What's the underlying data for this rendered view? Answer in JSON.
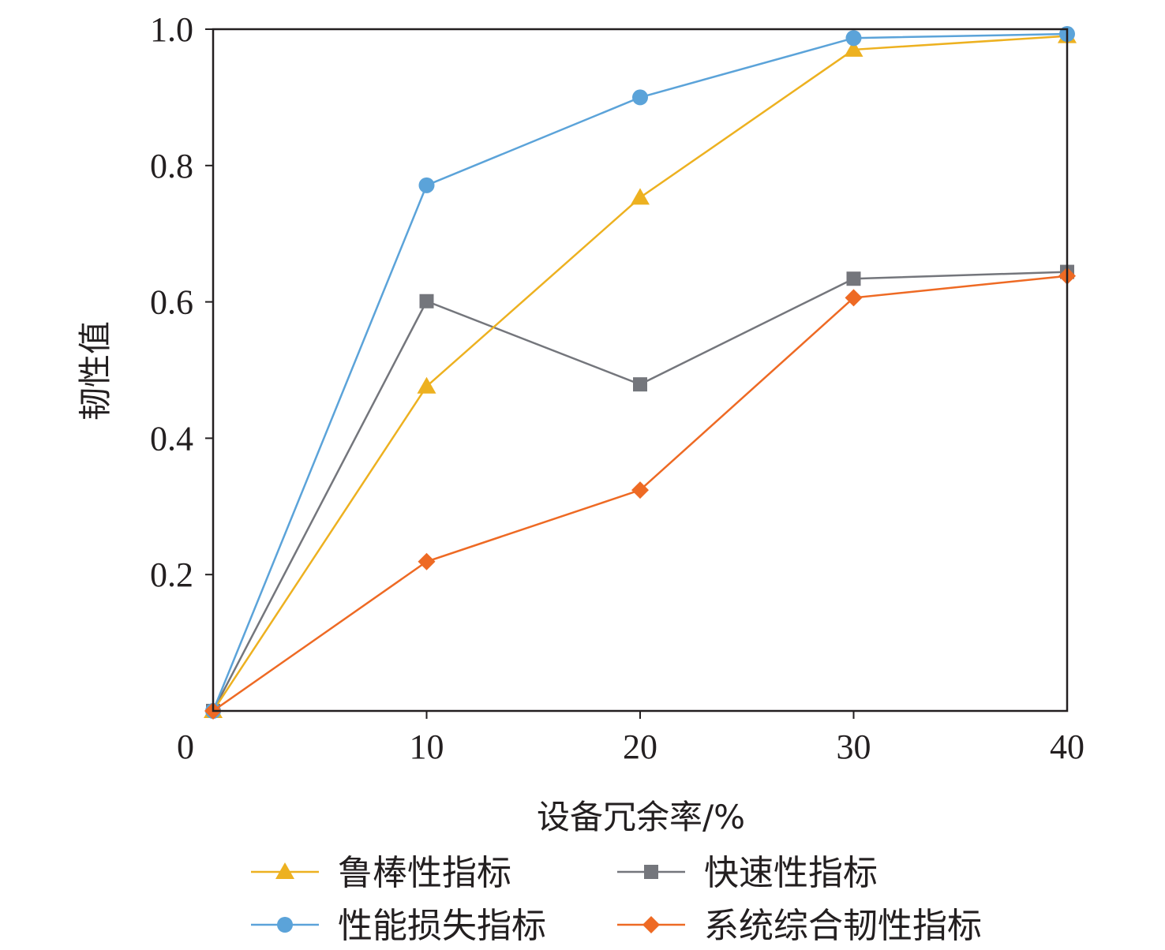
{
  "chart_data": {
    "type": "line",
    "title": "",
    "xlabel": "设备冗余率/%",
    "ylabel": "韧性值",
    "x": [
      0,
      10,
      20,
      30,
      40
    ],
    "xlim": [
      0,
      40
    ],
    "ylim": [
      0,
      1.0
    ],
    "xticks": [
      "0",
      "10",
      "20",
      "30",
      "40"
    ],
    "yticks": [
      "0.2",
      "0.4",
      "0.6",
      "0.8",
      "1.0"
    ],
    "ytick_values": [
      0.2,
      0.4,
      0.6,
      0.8,
      1.0
    ],
    "xtick_values": [
      0,
      10,
      20,
      30,
      40
    ],
    "grid": false,
    "legend_placement": "bottom",
    "series": [
      {
        "name": "鲁棒性指标",
        "marker": "triangle",
        "color": "#EDB120",
        "values": [
          0,
          0.476,
          0.753,
          0.97,
          0.99
        ]
      },
      {
        "name": "快速性指标",
        "marker": "square",
        "color": "#74767C",
        "values": [
          0,
          0.601,
          0.479,
          0.634,
          0.644
        ]
      },
      {
        "name": "性能损失指标",
        "marker": "circle",
        "color": "#5BA3D9",
        "values": [
          0,
          0.771,
          0.9,
          0.987,
          0.993
        ]
      },
      {
        "name": "系统综合韧性指标",
        "marker": "diamond",
        "color": "#EE6A24",
        "values": [
          0,
          0.219,
          0.324,
          0.606,
          0.638
        ]
      }
    ]
  }
}
